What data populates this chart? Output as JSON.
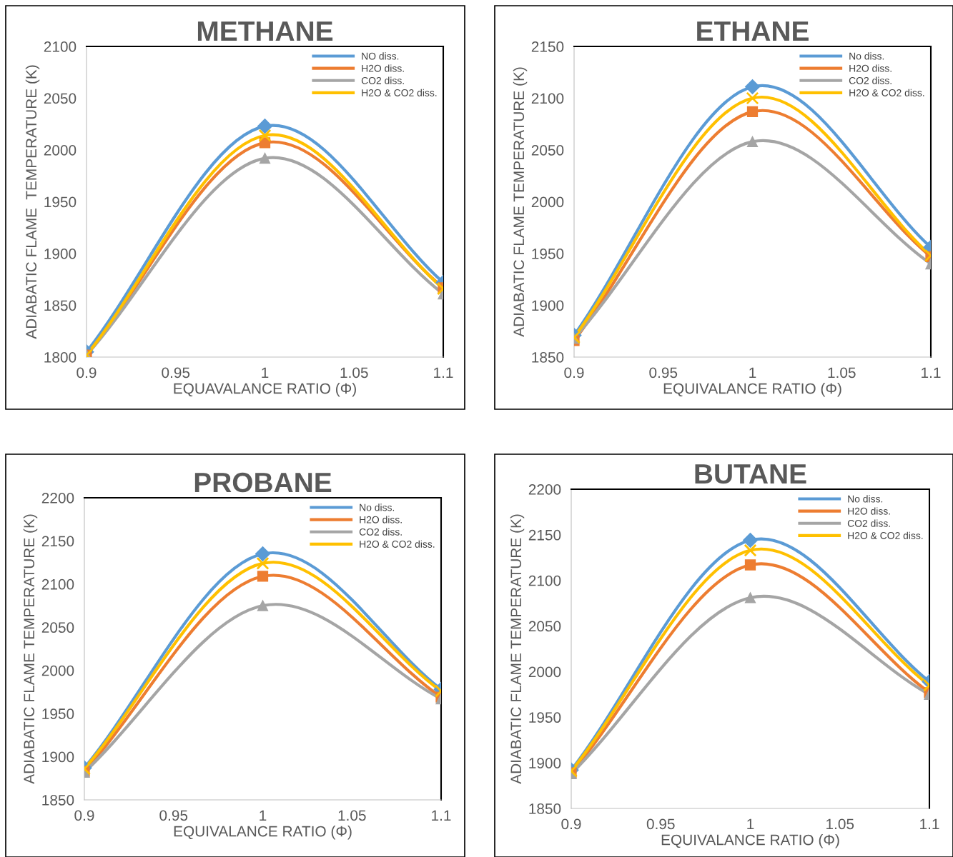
{
  "chart_data": [
    {
      "type": "line",
      "title": "METHANE",
      "xlabel": "EQUAVALANCE RATIO (Φ)",
      "ylabel": "ADIABATIC FLAME  TEMPERATURE (K)",
      "x": [
        0.9,
        1,
        1.1
      ],
      "xlim": [
        0.9,
        1.1
      ],
      "xticks": [
        0.9,
        0.95,
        1,
        1.05,
        1.1
      ],
      "ylim": [
        1800,
        2100
      ],
      "yticks": [
        1800,
        1850,
        1900,
        1950,
        2000,
        2050,
        2100
      ],
      "grid": false,
      "legend": "top right",
      "series": [
        {
          "name": "NO diss.",
          "color": "#5b9bd5",
          "marker": "diamond",
          "values": [
            1805,
            2023,
            1872
          ]
        },
        {
          "name": "H2O diss.",
          "color": "#ed7d31",
          "marker": "square",
          "values": [
            1802,
            2007,
            1867
          ]
        },
        {
          "name": "CO2 diss.",
          "color": "#a5a5a5",
          "marker": "triangle",
          "values": [
            1802,
            1992,
            1861
          ]
        },
        {
          "name": "H2O & CO2 diss.",
          "color": "#ffc000",
          "marker": "cross",
          "values": [
            1802,
            2014,
            1866
          ]
        }
      ]
    },
    {
      "type": "line",
      "title": "ETHANE",
      "xlabel": "EQUIVALANCE RATIO (Φ)",
      "ylabel": "ADIABATIC FLAME TEMPERATURE (K)",
      "x": [
        0.9,
        1,
        1.1
      ],
      "xlim": [
        0.9,
        1.1
      ],
      "xticks": [
        0.9,
        0.95,
        1,
        1.05,
        1.1
      ],
      "ylim": [
        1850,
        2150
      ],
      "yticks": [
        1850,
        1900,
        1950,
        2000,
        2050,
        2100,
        2150
      ],
      "grid": false,
      "legend": "top right",
      "series": [
        {
          "name": "No diss.",
          "color": "#5b9bd5",
          "marker": "diamond",
          "values": [
            1871,
            2111,
            1956
          ]
        },
        {
          "name": "H2O diss.",
          "color": "#ed7d31",
          "marker": "square",
          "values": [
            1866,
            2087,
            1947
          ]
        },
        {
          "name": "CO2 diss.",
          "color": "#a5a5a5",
          "marker": "triangle",
          "values": [
            1868,
            2058,
            1940
          ]
        },
        {
          "name": "H2O & CO2 diss.",
          "color": "#ffc000",
          "marker": "cross",
          "values": [
            1869,
            2100,
            1948
          ]
        }
      ]
    },
    {
      "type": "line",
      "title": "PROBANE",
      "xlabel": "EQUIVALANCE RATIO (Φ)",
      "ylabel": "ADIABATIC FLAME TEMPERATURE (K)",
      "x": [
        0.9,
        1,
        1.1
      ],
      "xlim": [
        0.9,
        1.1
      ],
      "xticks": [
        0.9,
        0.95,
        1,
        1.05,
        1.1
      ],
      "ylim": [
        1850,
        2200
      ],
      "yticks": [
        1850,
        1900,
        1950,
        2000,
        2050,
        2100,
        2150,
        2200
      ],
      "grid": false,
      "legend": "top right",
      "series": [
        {
          "name": "No diss.",
          "color": "#5b9bd5",
          "marker": "diamond",
          "values": [
            1887,
            2135,
            1978
          ]
        },
        {
          "name": "H2O diss.",
          "color": "#ed7d31",
          "marker": "square",
          "values": [
            1883,
            2109,
            1969
          ]
        },
        {
          "name": "CO2 diss.",
          "color": "#a5a5a5",
          "marker": "triangle",
          "values": [
            1882,
            2075,
            1967
          ]
        },
        {
          "name": "H2O & CO2 diss.",
          "color": "#ffc000",
          "marker": "cross",
          "values": [
            1886,
            2124,
            1976
          ]
        }
      ]
    },
    {
      "type": "line",
      "title": "BUTANE",
      "xlabel": "EQUIVALANCE RATIO (Φ)",
      "ylabel": "ADIABATIC FLAME TEMPERATURE (K)",
      "x": [
        0.9,
        1,
        1.1
      ],
      "xlim": [
        0.9,
        1.1
      ],
      "xticks": [
        0.9,
        0.95,
        1,
        1.05,
        1.1
      ],
      "ylim": [
        1850,
        2200
      ],
      "yticks": [
        1850,
        1900,
        1950,
        2000,
        2050,
        2100,
        2150,
        2200
      ],
      "grid": false,
      "legend": "top right",
      "series": [
        {
          "name": "No diss.",
          "color": "#5b9bd5",
          "marker": "diamond",
          "values": [
            1892,
            2144,
            1989
          ]
        },
        {
          "name": "H2O diss.",
          "color": "#ed7d31",
          "marker": "square",
          "values": [
            1889,
            2117,
            1977
          ]
        },
        {
          "name": "CO2 diss.",
          "color": "#a5a5a5",
          "marker": "triangle",
          "values": [
            1888,
            2081,
            1975
          ]
        },
        {
          "name": "H2O & CO2 diss.",
          "color": "#ffc000",
          "marker": "cross",
          "values": [
            1891,
            2133,
            1985
          ]
        }
      ]
    }
  ]
}
